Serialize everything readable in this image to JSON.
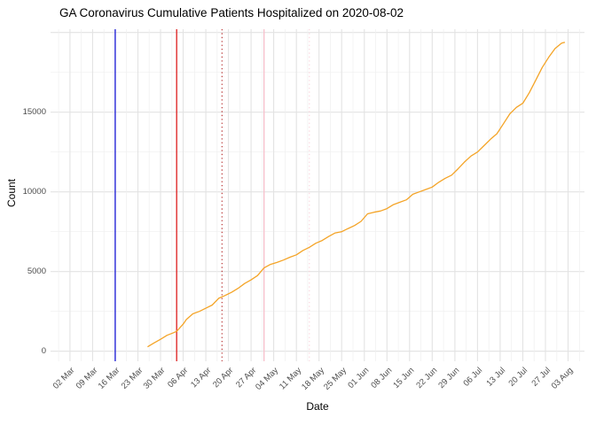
{
  "chart_data": {
    "type": "line",
    "title": "GA Coronavirus Cumulative Patients Hospitalized on 2020-08-02",
    "xlabel": "Date",
    "ylabel": "Count",
    "grid": true,
    "legend": false,
    "background": "#ffffff",
    "grid_major_color": "#E3E3E3",
    "grid_minor_color": "#EFEFEF",
    "ylim": [
      -600,
      20200
    ],
    "y_ticks": [
      0,
      5000,
      10000,
      15000
    ],
    "y_tick_labels": [
      "0",
      "5000",
      "10000",
      "15000"
    ],
    "y_minor_step": 2500,
    "x_range": [
      "2020-02-25",
      "2020-08-08"
    ],
    "x_ticks": [
      {
        "date": "2020-03-02",
        "label": "02 Mar"
      },
      {
        "date": "2020-03-09",
        "label": "09 Mar"
      },
      {
        "date": "2020-03-16",
        "label": "16 Mar"
      },
      {
        "date": "2020-03-23",
        "label": "23 Mar"
      },
      {
        "date": "2020-03-30",
        "label": "30 Mar"
      },
      {
        "date": "2020-04-06",
        "label": "06 Apr"
      },
      {
        "date": "2020-04-13",
        "label": "13 Apr"
      },
      {
        "date": "2020-04-20",
        "label": "20 Apr"
      },
      {
        "date": "2020-04-27",
        "label": "27 Apr"
      },
      {
        "date": "2020-05-04",
        "label": "04 May"
      },
      {
        "date": "2020-05-11",
        "label": "11 May"
      },
      {
        "date": "2020-05-18",
        "label": "18 May"
      },
      {
        "date": "2020-05-25",
        "label": "25 May"
      },
      {
        "date": "2020-06-01",
        "label": "01 Jun"
      },
      {
        "date": "2020-06-08",
        "label": "08 Jun"
      },
      {
        "date": "2020-06-15",
        "label": "15 Jun"
      },
      {
        "date": "2020-06-22",
        "label": "22 Jun"
      },
      {
        "date": "2020-06-29",
        "label": "29 Jun"
      },
      {
        "date": "2020-07-06",
        "label": "06 Jul"
      },
      {
        "date": "2020-07-13",
        "label": "13 Jul"
      },
      {
        "date": "2020-07-20",
        "label": "20 Jul"
      },
      {
        "date": "2020-07-27",
        "label": "27 Jul"
      },
      {
        "date": "2020-08-03",
        "label": "03 Aug"
      }
    ],
    "vlines": [
      {
        "date": "2020-03-16",
        "color": "#2626D8",
        "style": "solid"
      },
      {
        "date": "2020-04-04",
        "color": "#DF2B2B",
        "style": "solid"
      },
      {
        "date": "2020-04-18",
        "color": "#B22222",
        "style": "dotted"
      },
      {
        "date": "2020-05-01",
        "color": "#F8C3CE",
        "style": "solid"
      },
      {
        "date": "2020-05-15",
        "color": "#F9D2DB",
        "style": "dotted"
      }
    ],
    "series": [
      {
        "name": "cumulative-patients-hospitalized",
        "color": "#F4A427",
        "points": [
          [
            "2020-03-26",
            280
          ],
          [
            "2020-03-28",
            520
          ],
          [
            "2020-03-30",
            750
          ],
          [
            "2020-04-01",
            1000
          ],
          [
            "2020-04-03",
            1160
          ],
          [
            "2020-04-04",
            1250
          ],
          [
            "2020-04-06",
            1700
          ],
          [
            "2020-04-07",
            2000
          ],
          [
            "2020-04-09",
            2350
          ],
          [
            "2020-04-11",
            2500
          ],
          [
            "2020-04-13",
            2700
          ],
          [
            "2020-04-15",
            2900
          ],
          [
            "2020-04-17",
            3320
          ],
          [
            "2020-04-19",
            3500
          ],
          [
            "2020-04-21",
            3700
          ],
          [
            "2020-04-23",
            3950
          ],
          [
            "2020-04-25",
            4250
          ],
          [
            "2020-04-27",
            4480
          ],
          [
            "2020-04-29",
            4750
          ],
          [
            "2020-05-01",
            5230
          ],
          [
            "2020-05-03",
            5450
          ],
          [
            "2020-05-05",
            5570
          ],
          [
            "2020-05-07",
            5720
          ],
          [
            "2020-05-09",
            5900
          ],
          [
            "2020-05-11",
            6050
          ],
          [
            "2020-05-13",
            6320
          ],
          [
            "2020-05-15",
            6520
          ],
          [
            "2020-05-17",
            6780
          ],
          [
            "2020-05-19",
            6950
          ],
          [
            "2020-05-21",
            7200
          ],
          [
            "2020-05-23",
            7420
          ],
          [
            "2020-05-25",
            7500
          ],
          [
            "2020-05-27",
            7700
          ],
          [
            "2020-05-29",
            7890
          ],
          [
            "2020-05-31",
            8150
          ],
          [
            "2020-06-02",
            8620
          ],
          [
            "2020-06-04",
            8720
          ],
          [
            "2020-06-06",
            8800
          ],
          [
            "2020-06-08",
            8950
          ],
          [
            "2020-06-10",
            9200
          ],
          [
            "2020-06-12",
            9350
          ],
          [
            "2020-06-14",
            9500
          ],
          [
            "2020-06-16",
            9850
          ],
          [
            "2020-06-18",
            10000
          ],
          [
            "2020-06-20",
            10150
          ],
          [
            "2020-06-22",
            10300
          ],
          [
            "2020-06-24",
            10600
          ],
          [
            "2020-06-26",
            10850
          ],
          [
            "2020-06-28",
            11050
          ],
          [
            "2020-06-30",
            11450
          ],
          [
            "2020-07-02",
            11880
          ],
          [
            "2020-07-04",
            12250
          ],
          [
            "2020-07-06",
            12500
          ],
          [
            "2020-07-08",
            12900
          ],
          [
            "2020-07-10",
            13300
          ],
          [
            "2020-07-12",
            13650
          ],
          [
            "2020-07-14",
            14270
          ],
          [
            "2020-07-16",
            14900
          ],
          [
            "2020-07-18",
            15300
          ],
          [
            "2020-07-20",
            15560
          ],
          [
            "2020-07-22",
            16220
          ],
          [
            "2020-07-24",
            17000
          ],
          [
            "2020-07-26",
            17800
          ],
          [
            "2020-07-28",
            18440
          ],
          [
            "2020-07-30",
            19000
          ],
          [
            "2020-08-01",
            19330
          ],
          [
            "2020-08-02",
            19390
          ]
        ]
      }
    ]
  }
}
